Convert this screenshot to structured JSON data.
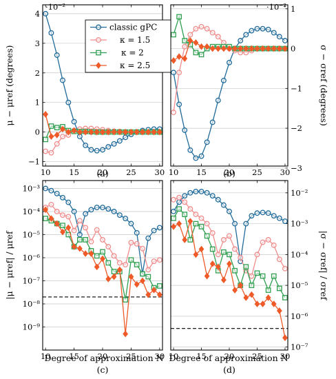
{
  "figure": {
    "xlabel": "Degree of approximation N",
    "legend_labels": [
      "classic gPC",
      "κ = 1.5",
      "κ = 2",
      "κ = 2.5"
    ]
  },
  "colors": {
    "classic": "#1f6a9a",
    "k15": "#f08c8c",
    "k2": "#2e9e4f",
    "k25": "#ef5a28",
    "reference": "#000000"
  },
  "chart_data": [
    {
      "id": "a",
      "type": "line",
      "caption": "(a)",
      "ylabel": "μ − μref (degrees)",
      "exponent_label": "·10⁻²",
      "x": [
        10,
        11,
        12,
        13,
        14,
        15,
        16,
        17,
        18,
        19,
        20,
        21,
        22,
        23,
        24,
        25,
        26,
        27,
        28,
        29,
        30
      ],
      "xlim": [
        9.5,
        30.5
      ],
      "ylim": [
        -1.15,
        4.3
      ],
      "yscale": "linear",
      "yticks": [
        -1,
        0,
        1,
        2,
        3,
        4
      ],
      "ytick_labels": [
        "−1",
        "0",
        "1",
        "2",
        "3",
        "4"
      ],
      "xticks": [
        10,
        15,
        20,
        25,
        30
      ],
      "xtick_labels": [
        "10",
        "15",
        "20",
        "25",
        "30"
      ],
      "grid": "horizontal",
      "legend": "top-right",
      "series": [
        {
          "key": "classic",
          "name": "classic gPC",
          "marker": "circle",
          "values": [
            4.0,
            3.35,
            2.6,
            1.75,
            1.0,
            0.35,
            -0.15,
            -0.45,
            -0.6,
            -0.63,
            -0.6,
            -0.5,
            -0.4,
            -0.3,
            -0.18,
            -0.08,
            0.0,
            0.05,
            0.08,
            0.1,
            0.1
          ]
        },
        {
          "key": "k15",
          "name": "κ = 1.5",
          "marker": "circle",
          "values": [
            -0.65,
            -0.7,
            -0.4,
            -0.15,
            -0.1,
            0.05,
            0.1,
            0.12,
            0.12,
            0.1,
            0.08,
            0.05,
            0.03,
            0.02,
            0.0,
            0.0,
            0.0,
            0.0,
            0.0,
            0.0,
            0.0
          ]
        },
        {
          "key": "k2",
          "name": "κ = 2",
          "marker": "square",
          "values": [
            -0.25,
            0.2,
            0.15,
            0.18,
            0.05,
            0.02,
            0.02,
            0.02,
            0.01,
            0.0,
            0.0,
            0.0,
            0.0,
            0.0,
            0.0,
            0.0,
            0.0,
            0.0,
            0.0,
            0.0,
            0.0
          ]
        },
        {
          "key": "k25",
          "name": "κ = 2.5",
          "marker": "diamond",
          "values": [
            0.6,
            -0.15,
            -0.1,
            0.1,
            0.0,
            0.05,
            0.0,
            0.0,
            0.0,
            0.0,
            0.0,
            0.0,
            0.0,
            0.0,
            0.0,
            0.0,
            0.0,
            0.0,
            0.0,
            0.0,
            0.0
          ]
        }
      ]
    },
    {
      "id": "b",
      "type": "line",
      "caption": "(b)",
      "ylabel": "σ − σref (degrees)",
      "exponent_label": "·10⁻²",
      "x": [
        10,
        11,
        12,
        13,
        14,
        15,
        16,
        17,
        18,
        19,
        20,
        21,
        22,
        23,
        24,
        25,
        26,
        27,
        28,
        29,
        30
      ],
      "xlim": [
        9.5,
        30.5
      ],
      "ylim": [
        -2.95,
        1.1
      ],
      "yscale": "linear",
      "yticks": [
        -3,
        -2,
        -1,
        0,
        1
      ],
      "ytick_labels": [
        "−3",
        "−2",
        "−1",
        "0",
        "1"
      ],
      "xticks": [
        10,
        15,
        20,
        25,
        30
      ],
      "xtick_labels": [
        "10",
        "15",
        "20",
        "25",
        "30"
      ],
      "grid": "horizontal",
      "series": [
        {
          "key": "classic",
          "name": "classic gPC",
          "marker": "circle",
          "values": [
            -0.6,
            -1.4,
            -2.05,
            -2.55,
            -2.75,
            -2.7,
            -2.35,
            -1.85,
            -1.3,
            -0.8,
            -0.35,
            0.0,
            0.2,
            0.35,
            0.45,
            0.5,
            0.5,
            0.48,
            0.4,
            0.3,
            0.2
          ]
        },
        {
          "key": "k15",
          "name": "κ = 1.5",
          "marker": "circle",
          "values": [
            -1.6,
            -0.6,
            0.05,
            0.35,
            0.5,
            0.55,
            0.5,
            0.4,
            0.3,
            0.15,
            0.0,
            -0.05,
            -0.1,
            -0.1,
            -0.05,
            0.0,
            0.0,
            0.0,
            0.0,
            0.0,
            0.0
          ]
        },
        {
          "key": "k2",
          "name": "κ = 2",
          "marker": "square",
          "values": [
            0.35,
            0.8,
            0.2,
            0.1,
            -0.1,
            -0.15,
            0.0,
            0.05,
            0.05,
            0.05,
            0.05,
            0.0,
            0.0,
            0.0,
            0.0,
            0.0,
            0.0,
            0.0,
            0.0,
            0.0,
            0.0
          ]
        },
        {
          "key": "k25",
          "name": "κ = 2.5",
          "marker": "diamond",
          "values": [
            -0.3,
            -0.2,
            -0.25,
            0.2,
            0.15,
            0.05,
            0.05,
            0.0,
            0.0,
            0.0,
            0.0,
            0.0,
            0.0,
            0.0,
            0.0,
            0.0,
            0.0,
            0.0,
            0.0,
            0.0,
            0.0
          ]
        }
      ]
    },
    {
      "id": "c",
      "type": "line",
      "caption": "(c)",
      "ylabel": "|μ − μref| / μref",
      "x": [
        10,
        11,
        12,
        13,
        14,
        15,
        16,
        17,
        18,
        19,
        20,
        21,
        22,
        23,
        24,
        25,
        26,
        27,
        28,
        29,
        30
      ],
      "xlim": [
        9.5,
        30.5
      ],
      "ylim": [
        1e-10,
        0.0022
      ],
      "yscale": "log",
      "yticks": [
        1e-09,
        1e-08,
        1e-07,
        1e-06,
        1e-05,
        0.0001,
        0.001
      ],
      "ytick_labels": [
        "10⁻⁹",
        "10⁻⁸",
        "10⁻⁷",
        "10⁻⁶",
        "10⁻⁵",
        "10⁻⁴",
        "10⁻³"
      ],
      "xticks": [
        10,
        15,
        20,
        25,
        30
      ],
      "xtick_labels": [
        "10",
        "15",
        "20",
        "25",
        "30"
      ],
      "grid": "horizontal",
      "reference_line": 2e-08,
      "series": [
        {
          "key": "classic",
          "name": "classic gPC",
          "marker": "circle",
          "values": [
            0.001,
            0.0008,
            0.0006,
            0.0004,
            0.00025,
            0.0001,
            1e-05,
            8e-05,
            0.00012,
            0.00015,
            0.00015,
            0.00013,
            0.0001,
            7e-05,
            5e-05,
            3e-05,
            1.2e-05,
            2e-07,
            7e-06,
            1.5e-05,
            2e-05
          ]
        },
        {
          "key": "k15",
          "name": "κ = 1.5",
          "marker": "circle",
          "values": [
            0.00015,
            0.0002,
            0.0001,
            7e-05,
            6e-05,
            1.5e-05,
            4e-05,
            2e-05,
            5e-06,
            1.6e-05,
            6e-06,
            3e-06,
            1.2e-06,
            6e-07,
            5e-07,
            4.5e-06,
            4e-06,
            2.5e-06,
            3e-07,
            7e-07,
            8e-07
          ]
        },
        {
          "key": "k2",
          "name": "κ = 2",
          "marker": "square",
          "values": [
            5e-05,
            4e-05,
            3e-05,
            2.5e-05,
            1e-05,
            3e-06,
            6e-06,
            6e-06,
            2e-06,
            1.2e-06,
            1.8e-06,
            6e-07,
            2.5e-07,
            2.5e-07,
            1.5e-08,
            8e-07,
            5e-07,
            2e-07,
            1.5e-07,
            5e-08,
            6e-08
          ]
        },
        {
          "key": "k25",
          "name": "κ = 2.5",
          "marker": "diamond",
          "values": [
            0.00012,
            5e-05,
            3e-05,
            1.3e-05,
            2e-05,
            3e-06,
            2.5e-06,
            1.5e-06,
            1.5e-06,
            4e-07,
            9e-07,
            1.2e-07,
            1.5e-07,
            3e-07,
            5e-10,
            1.5e-07,
            7e-08,
            1e-07,
            2.5e-08,
            4e-08,
            2.5e-08
          ]
        }
      ]
    },
    {
      "id": "d",
      "type": "line",
      "caption": "(d)",
      "ylabel": "|σ − σref| / σref",
      "x": [
        10,
        11,
        12,
        13,
        14,
        15,
        16,
        17,
        18,
        19,
        20,
        21,
        22,
        23,
        24,
        25,
        26,
        27,
        28,
        29,
        30
      ],
      "xlim": [
        9.5,
        30.5
      ],
      "ylim": [
        8e-08,
        0.025
      ],
      "yscale": "log",
      "yticks": [
        1e-07,
        1e-06,
        1e-05,
        0.0001,
        0.001,
        0.01
      ],
      "ytick_labels": [
        "10⁻⁷",
        "10⁻⁶",
        "10⁻⁵",
        "10⁻⁴",
        "10⁻³",
        "10⁻²"
      ],
      "xticks": [
        10,
        15,
        20,
        25,
        30
      ],
      "xtick_labels": [
        "10",
        "15",
        "20",
        "25",
        "30"
      ],
      "grid": "horizontal",
      "reference_line": 4e-07,
      "series": [
        {
          "key": "classic",
          "name": "classic gPC",
          "marker": "circle",
          "values": [
            0.0025,
            0.005,
            0.008,
            0.01,
            0.011,
            0.011,
            0.01,
            0.008,
            0.006,
            0.004,
            0.0025,
            0.001,
            6e-05,
            0.001,
            0.0018,
            0.0022,
            0.0023,
            0.0022,
            0.0018,
            0.0015,
            0.0012
          ]
        },
        {
          "key": "k15",
          "name": "κ = 1.5",
          "marker": "circle",
          "values": [
            0.006,
            0.007,
            0.005,
            0.003,
            0.002,
            0.0015,
            0.001,
            0.0005,
            0.0001,
            0.0003,
            0.0004,
            0.00015,
            8e-05,
            3e-05,
            2e-05,
            0.0001,
            0.00025,
            0.0003,
            0.0002,
            7e-05,
            3.5e-05
          ]
        },
        {
          "key": "k2",
          "name": "κ = 2",
          "marker": "square",
          "values": [
            0.0015,
            0.003,
            0.002,
            0.0003,
            0.001,
            0.0008,
            0.0004,
            0.00015,
            3e-05,
            0.00012,
            0.0001,
            3e-05,
            1e-05,
            4e-05,
            1e-05,
            2.5e-05,
            2e-05,
            7e-06,
            2e-05,
            8e-06,
            4e-06
          ]
        },
        {
          "key": "k25",
          "name": "κ = 2.5",
          "marker": "diamond",
          "values": [
            0.0008,
            0.001,
            0.0003,
            0.0012,
            0.0001,
            0.00015,
            2e-05,
            5e-05,
            4e-05,
            1.5e-05,
            5e-05,
            7e-06,
            1e-05,
            4e-06,
            5e-06,
            2.5e-06,
            2.5e-06,
            4e-06,
            2.5e-06,
            1.5e-06,
            2e-07
          ]
        }
      ]
    }
  ]
}
